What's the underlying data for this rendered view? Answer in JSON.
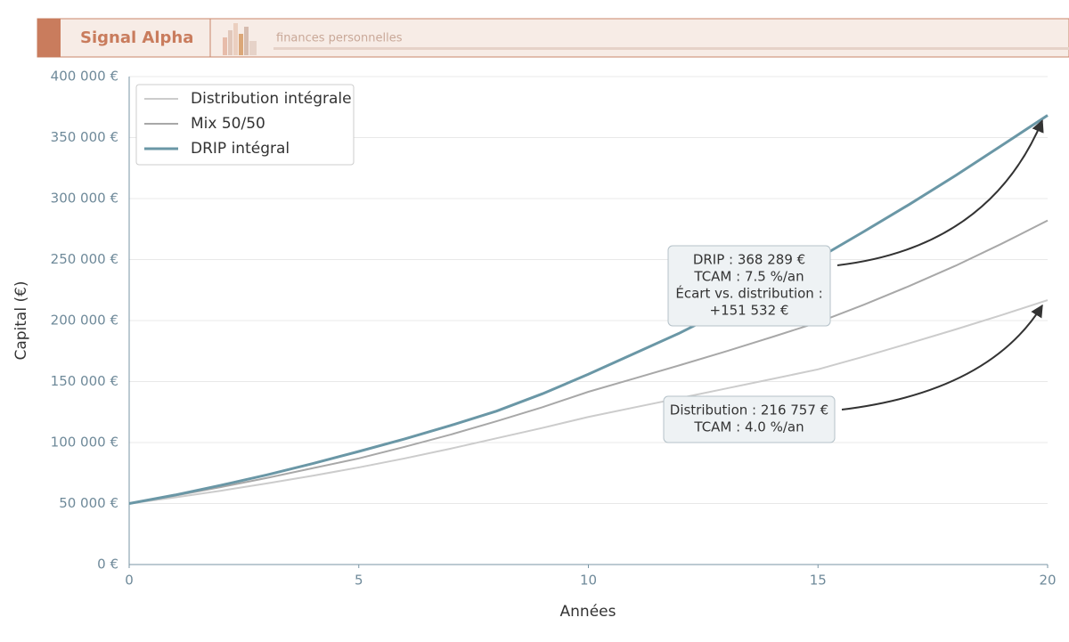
{
  "header": {
    "brand": "Signal Alpha",
    "tagline": "finances personnelles"
  },
  "chart_data": {
    "type": "line",
    "x_label": "Années",
    "y_label": "Capital (€)",
    "x": [
      0,
      1,
      2,
      3,
      4,
      5,
      6,
      7,
      8,
      9,
      10,
      11,
      12,
      13,
      14,
      15,
      16,
      17,
      18,
      19,
      20
    ],
    "series": [
      {
        "name": "Distribution intégrale",
        "color": "#cccccc",
        "values": [
          50000,
          55000,
          60500,
          66500,
          72800,
          79600,
          87000,
          95000,
          103500,
          112000,
          121000,
          128800,
          136500,
          144300,
          152100,
          160000,
          170500,
          181500,
          192800,
          204500,
          216757
        ]
      },
      {
        "name": "Mix 50/50",
        "color": "#a8a8a8",
        "values": [
          50000,
          56500,
          63500,
          71000,
          79000,
          87000,
          96500,
          106500,
          117500,
          129000,
          141600,
          152500,
          163500,
          174800,
          186500,
          198500,
          213000,
          228500,
          245000,
          263000,
          282000
        ]
      },
      {
        "name": "DRIP intégral",
        "color": "#6a97a6",
        "values": [
          50000,
          57000,
          65000,
          73500,
          82800,
          92700,
          103000,
          114000,
          125800,
          140000,
          156000,
          173000,
          190000,
          209000,
          229500,
          251000,
          273000,
          295500,
          319000,
          343500,
          368289
        ]
      }
    ],
    "xlim": [
      0,
      20
    ],
    "xticks": [
      0,
      5,
      10,
      15,
      20
    ],
    "ylim": [
      0,
      400000
    ],
    "yticks": [
      {
        "value": 0,
        "label": "0 €"
      },
      {
        "value": 50000,
        "label": "50 000 €"
      },
      {
        "value": 100000,
        "label": "100 000 €"
      },
      {
        "value": 150000,
        "label": "150 000 €"
      },
      {
        "value": 200000,
        "label": "200 000 €"
      },
      {
        "value": 250000,
        "label": "250 000 €"
      },
      {
        "value": 300000,
        "label": "300 000 €"
      },
      {
        "value": 350000,
        "label": "350 000 €"
      },
      {
        "value": 400000,
        "label": "400 000 €"
      }
    ],
    "grid": true,
    "legend": "upper left",
    "annotations": [
      {
        "lines": [
          "DRIP : 368 289 €",
          "TCAM : 7.5 %/an",
          "Écart vs. distribution :",
          "+151 532 €"
        ]
      },
      {
        "lines": [
          "Distribution : 216 757 €",
          "TCAM : 4.0 %/an"
        ]
      }
    ]
  }
}
